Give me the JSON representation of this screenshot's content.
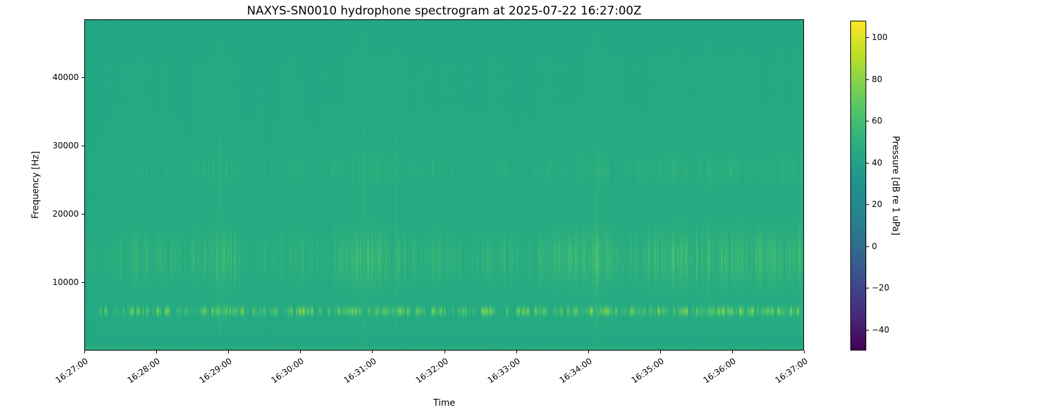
{
  "chart_data": {
    "type": "heatmap",
    "subtype": "spectrogram",
    "title": "NAXYS-SN0010 hydrophone spectrogram at 2025-07-22 16:27:00Z",
    "xlabel": "Time",
    "ylabel": "Frequency [Hz]",
    "x_ticks": [
      "16:27:00",
      "16:28:00",
      "16:29:00",
      "16:30:00",
      "16:31:00",
      "16:32:00",
      "16:33:00",
      "16:34:00",
      "16:35:00",
      "16:36:00",
      "16:37:00"
    ],
    "time_span_seconds": 600,
    "y_ticks": [
      10000,
      20000,
      30000,
      40000
    ],
    "ylim": [
      0,
      48500
    ],
    "grid": false,
    "colormap": "viridis",
    "colorbar": {
      "label": "Pressure [dB re 1 uPa]",
      "ticks": [
        100,
        80,
        60,
        40,
        20,
        0,
        -20,
        -40
      ],
      "vmin": -50,
      "vmax": 108,
      "position": "right",
      "top_color": "#fde725",
      "bottom_color": "#440154"
    },
    "key_colors": {
      "background_teal": "#22a884",
      "click_highlight": "#bddf26",
      "figure_background": "#ffffff",
      "axes_and_text": "#000000"
    },
    "features": {
      "background_level_db": 45,
      "click_band": {
        "center_hz": 5800,
        "sigma_hz": 450,
        "peak_db": 90,
        "description": "horizontal train of bright short click dashes near 5.8 kHz across entire record"
      },
      "texture_band": {
        "center_hz": 13600,
        "sigma_hz": 2600,
        "description": "dense thin vertical bright lines between ~11 and ~16.5 kHz"
      },
      "secondary_band": {
        "center_hz": 26500,
        "sigma_hz": 1500,
        "description": "faint dots during strong events near 26-27 kHz"
      },
      "low_strip": {
        "max_hz": 1200,
        "boost_db": 2.4,
        "description": "slightly brighter green strip at the bottom (lowest frequencies)"
      },
      "top_attenuation": {
        "above_hz": 42000,
        "drop_db": 0.9
      },
      "activity_clusters": [
        {
          "t_s": 54,
          "width_s": 24,
          "strength": 0.5
        },
        {
          "t_s": 114,
          "width_s": 14,
          "strength": 1.0
        },
        {
          "t_s": 177,
          "width_s": 16,
          "strength": 0.6
        },
        {
          "t_s": 231,
          "width_s": 16,
          "strength": 0.95
        },
        {
          "t_s": 276,
          "width_s": 22,
          "strength": 0.6
        },
        {
          "t_s": 348,
          "width_s": 22,
          "strength": 0.55
        },
        {
          "t_s": 396,
          "width_s": 16,
          "strength": 0.6
        },
        {
          "t_s": 426,
          "width_s": 9,
          "strength": 0.9
        },
        {
          "t_s": 480,
          "width_s": 28,
          "strength": 0.8
        },
        {
          "t_s": 516,
          "width_s": 16,
          "strength": 0.75
        },
        {
          "t_s": 567,
          "width_s": 26,
          "strength": 0.85
        },
        {
          "t_s": 597,
          "width_s": 6,
          "strength": 0.9
        }
      ],
      "full_height_streaks": [
        {
          "t_s": 112,
          "strength": 1.0
        },
        {
          "t_s": 233,
          "strength": 0.85
        },
        {
          "t_s": 259,
          "strength": 0.65
        },
        {
          "t_s": 427,
          "strength": 0.9
        },
        {
          "t_s": 521,
          "strength": 0.45
        },
        {
          "t_s": 597,
          "strength": 0.8
        }
      ]
    }
  }
}
